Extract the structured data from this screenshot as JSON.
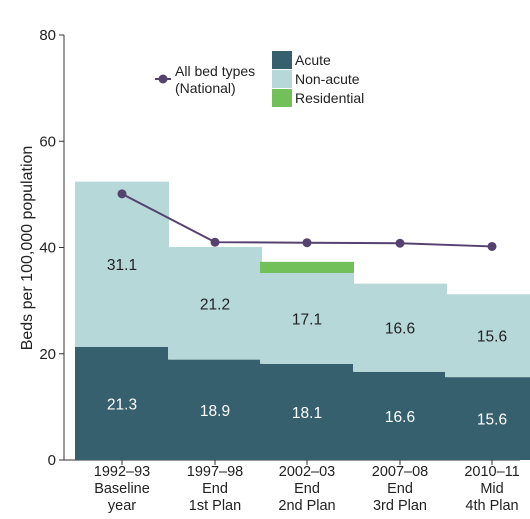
{
  "chart_data": {
    "type": "bar",
    "stacked": true,
    "ylabel": "Beds per 100,000 population",
    "ylim": [
      0,
      80
    ],
    "yticks": [
      0,
      20,
      40,
      60,
      80
    ],
    "grid": false,
    "categories": [
      [
        "1992–93",
        "Baseline",
        "year"
      ],
      [
        "1997–98",
        "End",
        "1st Plan"
      ],
      [
        "2002–03",
        "End",
        "2nd Plan"
      ],
      [
        "2007–08",
        "End",
        "3rd Plan"
      ],
      [
        "2010–11",
        "Mid",
        "4th Plan"
      ]
    ],
    "series": [
      {
        "name": "Acute",
        "color": "#36606e",
        "label_color": "#ffffff",
        "values": [
          21.3,
          18.9,
          18.1,
          16.6,
          15.6
        ]
      },
      {
        "name": "Non-acute",
        "color": "#b6d8d8",
        "label_color": "#222222",
        "values": [
          31.1,
          21.2,
          17.1,
          16.6,
          15.6
        ]
      },
      {
        "name": "Residential",
        "color": "#72c05a",
        "label_color": "#222222",
        "values": [
          0,
          0,
          2.1,
          0,
          0
        ]
      }
    ],
    "bar_labels": [
      [
        "21.3",
        "18.9",
        "18.1",
        "16.6",
        "15.6"
      ],
      [
        "31.1",
        "21.2",
        "17.1",
        "16.6",
        "15.6"
      ]
    ],
    "line": {
      "name": [
        "All bed types",
        "(National)"
      ],
      "color": "#55426e",
      "values": [
        50.1,
        41.0,
        40.9,
        40.8,
        40.2
      ]
    },
    "legend_placement": "top"
  }
}
